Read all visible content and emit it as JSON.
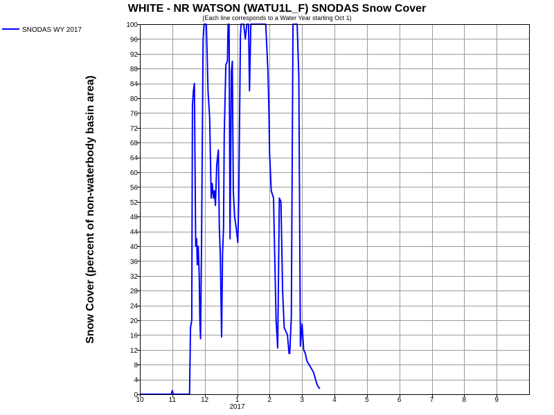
{
  "chart_data": {
    "type": "line",
    "title": "WHITE - NR WATSON (WATU1L_F) SNODAS Snow Cover",
    "subtitle": "(Each line corresponds to a Water Year starting Oct 1)",
    "ylabel": "Snow Cover (percent of non-waterbody basin area)",
    "xlabel": "",
    "ylim": [
      0,
      100
    ],
    "xlim": [
      0,
      12
    ],
    "grid": true,
    "legend_position": "top-left",
    "y_ticks": [
      0,
      4,
      8,
      12,
      16,
      20,
      24,
      28,
      32,
      36,
      40,
      44,
      48,
      52,
      56,
      60,
      64,
      68,
      72,
      76,
      80,
      84,
      88,
      92,
      96,
      100
    ],
    "x_ticks": [
      {
        "pos": 0,
        "label": "10"
      },
      {
        "pos": 1,
        "label": "11"
      },
      {
        "pos": 2,
        "label": "12"
      },
      {
        "pos": 3,
        "label": "1"
      },
      {
        "pos": 4,
        "label": "2"
      },
      {
        "pos": 5,
        "label": "3"
      },
      {
        "pos": 6,
        "label": "4"
      },
      {
        "pos": 7,
        "label": "5"
      },
      {
        "pos": 8,
        "label": "6"
      },
      {
        "pos": 9,
        "label": "7"
      },
      {
        "pos": 10,
        "label": "8"
      },
      {
        "pos": 11,
        "label": "9"
      }
    ],
    "year_label": {
      "pos": 3,
      "label": "2017"
    },
    "series": [
      {
        "name": "SNODAS WY 2017",
        "color": "#0000ff",
        "points": [
          [
            0.0,
            0
          ],
          [
            0.97,
            0
          ],
          [
            1.0,
            1
          ],
          [
            1.03,
            0
          ],
          [
            1.1,
            0
          ],
          [
            1.5,
            0
          ],
          [
            1.53,
            0
          ],
          [
            1.56,
            18
          ],
          [
            1.6,
            20
          ],
          [
            1.62,
            78
          ],
          [
            1.65,
            82
          ],
          [
            1.68,
            84
          ],
          [
            1.7,
            63
          ],
          [
            1.72,
            40
          ],
          [
            1.75,
            42
          ],
          [
            1.77,
            35
          ],
          [
            1.8,
            40
          ],
          [
            1.83,
            32
          ],
          [
            1.85,
            20
          ],
          [
            1.87,
            15
          ],
          [
            1.9,
            40
          ],
          [
            1.95,
            96
          ],
          [
            1.98,
            100
          ],
          [
            2.05,
            100
          ],
          [
            2.1,
            82
          ],
          [
            2.15,
            75
          ],
          [
            2.2,
            53
          ],
          [
            2.23,
            57
          ],
          [
            2.27,
            53
          ],
          [
            2.3,
            55
          ],
          [
            2.33,
            51
          ],
          [
            2.37,
            62
          ],
          [
            2.42,
            66
          ],
          [
            2.45,
            45
          ],
          [
            2.48,
            38
          ],
          [
            2.52,
            15.5
          ],
          [
            2.55,
            38
          ],
          [
            2.58,
            45
          ],
          [
            2.6,
            70
          ],
          [
            2.65,
            89
          ],
          [
            2.7,
            90
          ],
          [
            2.72,
            100
          ],
          [
            2.75,
            100
          ],
          [
            2.78,
            42
          ],
          [
            2.82,
            87
          ],
          [
            2.85,
            90
          ],
          [
            2.88,
            55
          ],
          [
            2.92,
            48
          ],
          [
            2.97,
            45
          ],
          [
            3.02,
            41
          ],
          [
            3.05,
            53
          ],
          [
            3.1,
            97
          ],
          [
            3.12,
            100
          ],
          [
            3.2,
            100
          ],
          [
            3.25,
            96
          ],
          [
            3.3,
            100
          ],
          [
            3.35,
            100
          ],
          [
            3.38,
            82
          ],
          [
            3.42,
            100
          ],
          [
            3.5,
            100
          ],
          [
            3.8,
            100
          ],
          [
            3.88,
            100
          ],
          [
            3.95,
            87
          ],
          [
            3.98,
            76
          ],
          [
            4.0,
            65
          ],
          [
            4.05,
            55
          ],
          [
            4.12,
            53
          ],
          [
            4.15,
            40
          ],
          [
            4.2,
            20
          ],
          [
            4.25,
            12.5
          ],
          [
            4.3,
            53
          ],
          [
            4.35,
            52
          ],
          [
            4.4,
            28
          ],
          [
            4.45,
            18
          ],
          [
            4.5,
            17
          ],
          [
            4.55,
            16
          ],
          [
            4.6,
            11
          ],
          [
            4.62,
            11
          ],
          [
            4.67,
            21
          ],
          [
            4.72,
            100
          ],
          [
            4.8,
            100
          ],
          [
            4.85,
            100
          ],
          [
            4.9,
            86
          ],
          [
            4.95,
            13
          ],
          [
            5.0,
            19
          ],
          [
            5.05,
            12
          ],
          [
            5.1,
            11
          ],
          [
            5.15,
            9
          ],
          [
            5.25,
            7.5
          ],
          [
            5.35,
            6
          ],
          [
            5.45,
            3
          ],
          [
            5.5,
            2
          ],
          [
            5.55,
            1.5
          ]
        ]
      }
    ]
  }
}
